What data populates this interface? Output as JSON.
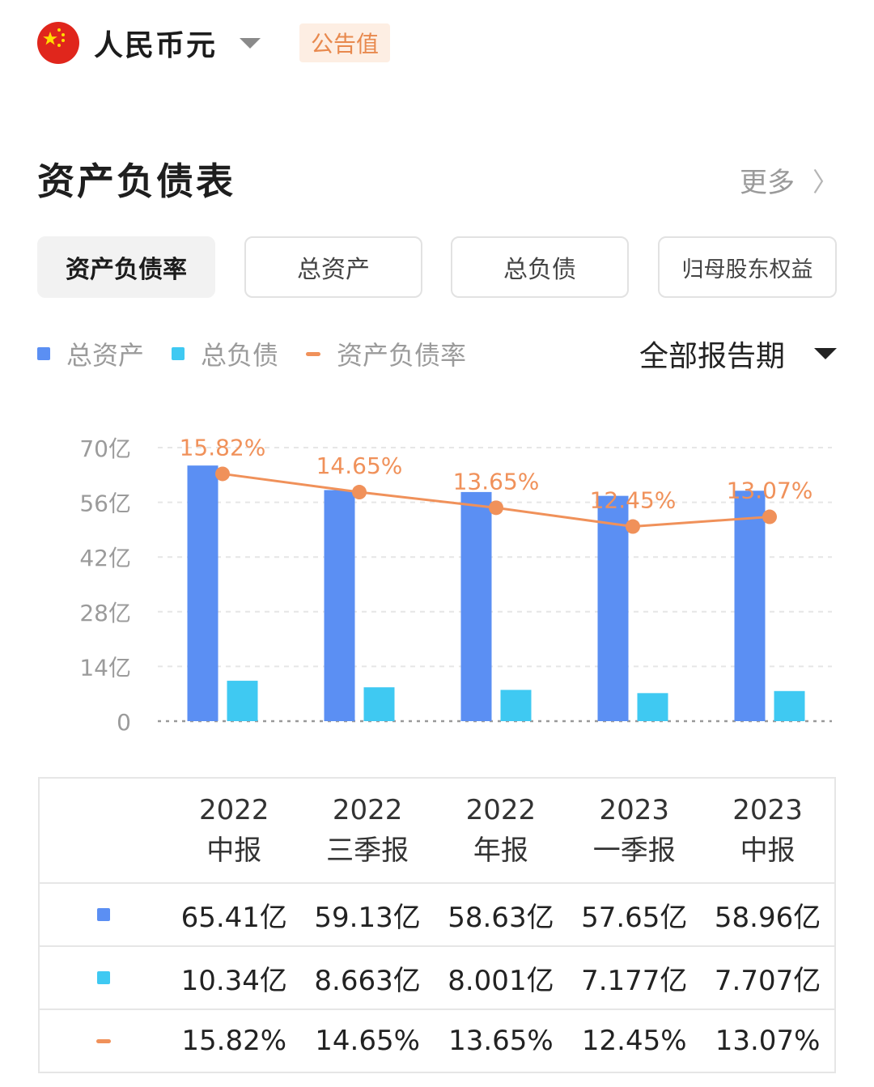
{
  "header": {
    "currency": "人民币元",
    "badge": "公告值"
  },
  "section": {
    "title": "资产负债表",
    "more": "更多"
  },
  "tabs": [
    {
      "label": "资产负债率",
      "active": true
    },
    {
      "label": "总资产",
      "active": false
    },
    {
      "label": "总负债",
      "active": false
    },
    {
      "label": "归母股东权益",
      "active": false
    }
  ],
  "legend": {
    "assets": "总资产",
    "liabilities": "总负债",
    "ratio": "资产负债率"
  },
  "period_selector": "全部报告期",
  "colors": {
    "assets": "#5b8ff3",
    "liabilities": "#3fc9f2",
    "ratio": "#f0915a"
  },
  "chart_data": {
    "type": "bar",
    "categories": [
      "2022 中报",
      "2022 三季报",
      "2022 年报",
      "2023 一季报",
      "2023 中报"
    ],
    "series": [
      {
        "name": "总资产",
        "type": "bar",
        "values": [
          65.41,
          59.13,
          58.63,
          57.65,
          58.96
        ]
      },
      {
        "name": "总负债",
        "type": "bar",
        "values": [
          10.34,
          8.663,
          8.001,
          7.177,
          7.707
        ]
      },
      {
        "name": "资产负债率",
        "type": "line",
        "values": [
          15.82,
          14.65,
          13.65,
          12.45,
          13.07
        ]
      }
    ],
    "ratio_labels": [
      "15.82%",
      "14.65%",
      "13.65%",
      "12.45%",
      "13.07%"
    ],
    "y_ticks": [
      "0",
      "14亿",
      "28亿",
      "42亿",
      "56亿",
      "70亿"
    ],
    "ylim": [
      0,
      70
    ],
    "grid": true
  },
  "table": {
    "headers": [
      {
        "year": "2022",
        "period": "中报"
      },
      {
        "year": "2022",
        "period": "三季报"
      },
      {
        "year": "2022",
        "period": "年报"
      },
      {
        "year": "2023",
        "period": "一季报"
      },
      {
        "year": "2023",
        "period": "中报"
      }
    ],
    "rows": [
      [
        "65.41亿",
        "59.13亿",
        "58.63亿",
        "57.65亿",
        "58.96亿"
      ],
      [
        "10.34亿",
        "8.663亿",
        "8.001亿",
        "7.177亿",
        "7.707亿"
      ],
      [
        "15.82%",
        "14.65%",
        "13.65%",
        "12.45%",
        "13.07%"
      ]
    ]
  }
}
